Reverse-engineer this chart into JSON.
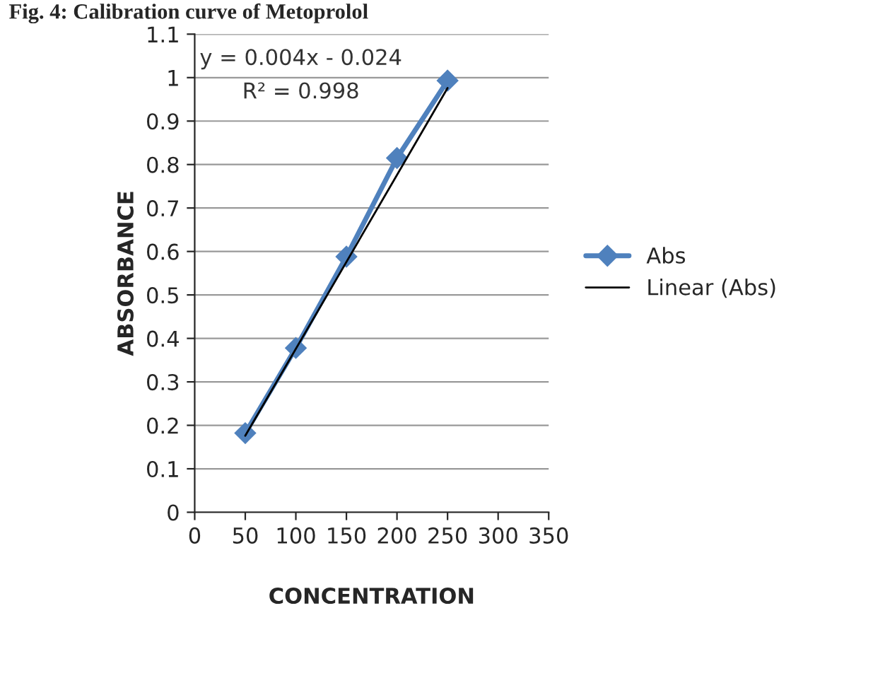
{
  "chart_data": {
    "type": "line",
    "title": "Fig. 4: Calibration curve of Metoprolol",
    "xlabel": "CONCENTRATION",
    "ylabel": "ABSORBANCE",
    "x": [
      50,
      100,
      150,
      200,
      250
    ],
    "series": [
      {
        "name": "Abs",
        "color": "#4f81bd",
        "marker": "diamond",
        "values": [
          0.182,
          0.378,
          0.588,
          0.815,
          0.993
        ]
      },
      {
        "name": "Linear (Abs)",
        "color": "#000000",
        "marker": "none",
        "x": [
          50,
          250
        ],
        "values": [
          0.176,
          0.976
        ]
      }
    ],
    "xlim": [
      0,
      350
    ],
    "xticks": [
      0,
      50,
      100,
      150,
      200,
      250,
      300,
      350
    ],
    "ylim": [
      0,
      1.1
    ],
    "yticks": [
      0,
      0.1,
      0.2,
      0.3,
      0.4,
      0.5,
      0.6,
      0.7,
      0.8,
      0.9,
      1,
      1.1
    ],
    "grid": "y",
    "legend": "right",
    "annotations": [
      "y = 0.004x - 0.024",
      "R² = 0.998"
    ]
  }
}
